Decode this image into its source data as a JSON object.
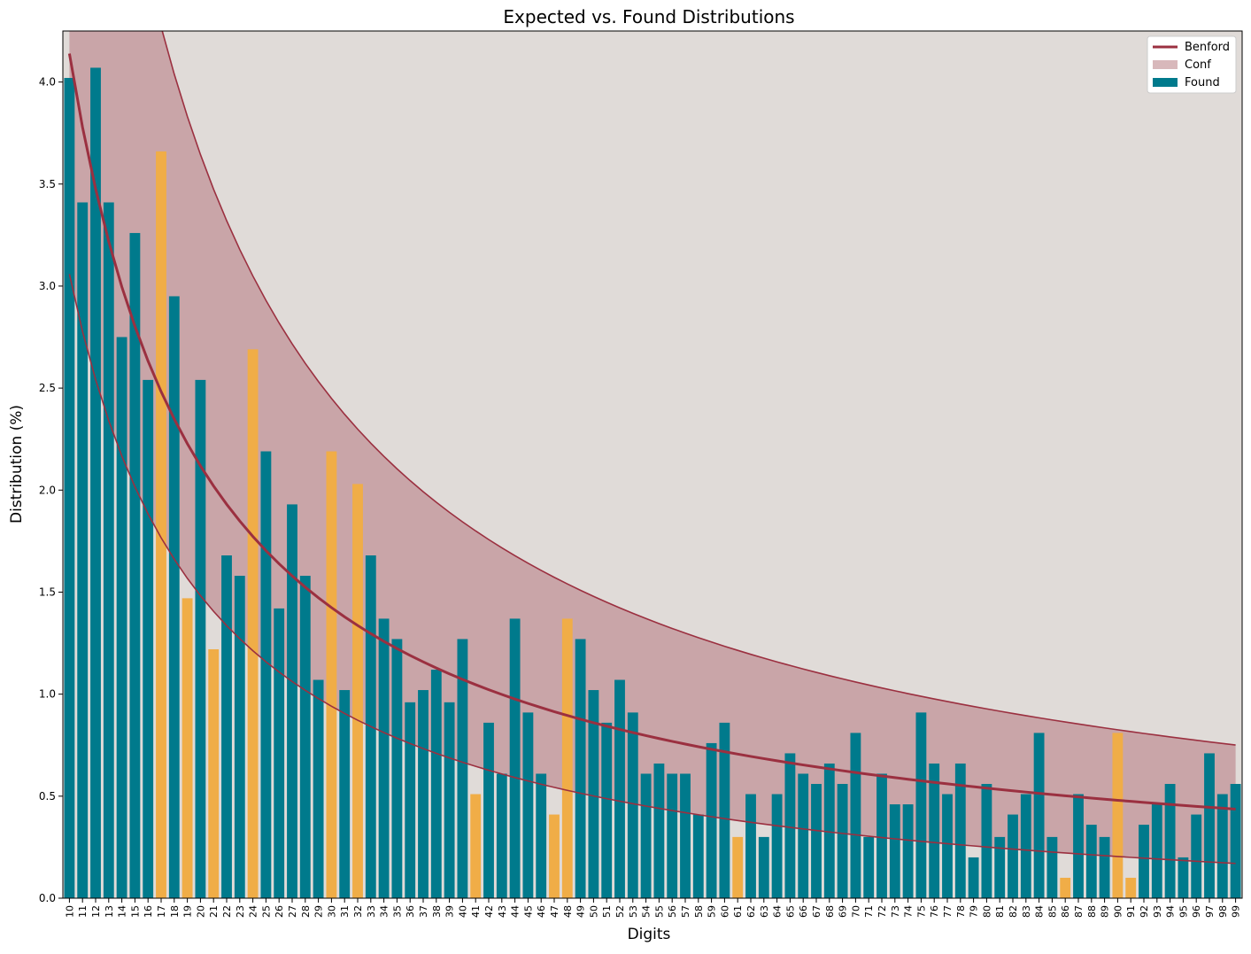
{
  "chart_data": {
    "type": "bar",
    "title": "Expected vs. Found Distributions",
    "xlabel": "Digits",
    "ylabel": "Distribution (%)",
    "ylim": [
      0,
      4.25
    ],
    "yticks": [
      0.0,
      0.5,
      1.0,
      1.5,
      2.0,
      2.5,
      3.0,
      3.5,
      4.0
    ],
    "grid": false,
    "legend": {
      "placement": "top-right",
      "entries": [
        "Benford",
        "Conf",
        "Found"
      ]
    },
    "colors": {
      "found": "#007a8c",
      "outlier": "#f0ad47",
      "benford": "#9b3040",
      "conf_fill": "#c9a5a8",
      "background": "#e0dbd8",
      "legend_conf": "#d8b8bb"
    },
    "categories": [
      "10",
      "11",
      "12",
      "13",
      "14",
      "15",
      "16",
      "17",
      "18",
      "19",
      "20",
      "21",
      "22",
      "23",
      "24",
      "25",
      "26",
      "27",
      "28",
      "29",
      "30",
      "31",
      "32",
      "33",
      "34",
      "35",
      "36",
      "37",
      "38",
      "39",
      "40",
      "41",
      "42",
      "43",
      "44",
      "45",
      "46",
      "47",
      "48",
      "49",
      "50",
      "51",
      "52",
      "53",
      "54",
      "55",
      "56",
      "57",
      "58",
      "59",
      "60",
      "61",
      "62",
      "63",
      "64",
      "65",
      "66",
      "67",
      "68",
      "69",
      "70",
      "71",
      "72",
      "73",
      "74",
      "75",
      "76",
      "77",
      "78",
      "79",
      "80",
      "81",
      "82",
      "83",
      "84",
      "85",
      "86",
      "87",
      "88",
      "89",
      "90",
      "91",
      "92",
      "93",
      "94",
      "95",
      "96",
      "97",
      "98",
      "99"
    ],
    "series": [
      {
        "name": "Found",
        "values": [
          4.02,
          3.41,
          4.07,
          3.41,
          2.75,
          3.26,
          2.54,
          3.66,
          2.95,
          1.47,
          2.54,
          1.22,
          1.68,
          1.58,
          2.69,
          2.19,
          1.42,
          1.93,
          1.58,
          1.07,
          2.19,
          1.02,
          2.03,
          1.68,
          1.37,
          1.27,
          0.96,
          1.02,
          1.12,
          0.96,
          1.27,
          0.51,
          0.86,
          0.61,
          1.37,
          0.91,
          0.61,
          0.41,
          1.37,
          1.27,
          1.02,
          0.86,
          1.07,
          0.91,
          0.61,
          0.66,
          0.61,
          0.61,
          0.41,
          0.76,
          0.86,
          0.3,
          0.51,
          0.3,
          0.51,
          0.71,
          0.61,
          0.56,
          0.66,
          0.56,
          0.81,
          0.3,
          0.61,
          0.46,
          0.46,
          0.91,
          0.66,
          0.51,
          0.66,
          0.2,
          0.56,
          0.3,
          0.41,
          0.51,
          0.81,
          0.3,
          0.1,
          0.51,
          0.36,
          0.3,
          0.81,
          0.1,
          0.36,
          0.46,
          0.56,
          0.2,
          0.41,
          0.71,
          0.51,
          0.56
        ],
        "outliers": [
          "17",
          "19",
          "21",
          "24",
          "30",
          "32",
          "41",
          "47",
          "48",
          "61",
          "86",
          "90",
          "91"
        ]
      }
    ],
    "benford_note": "Benford expected curve with upper and lower confidence bounds"
  }
}
